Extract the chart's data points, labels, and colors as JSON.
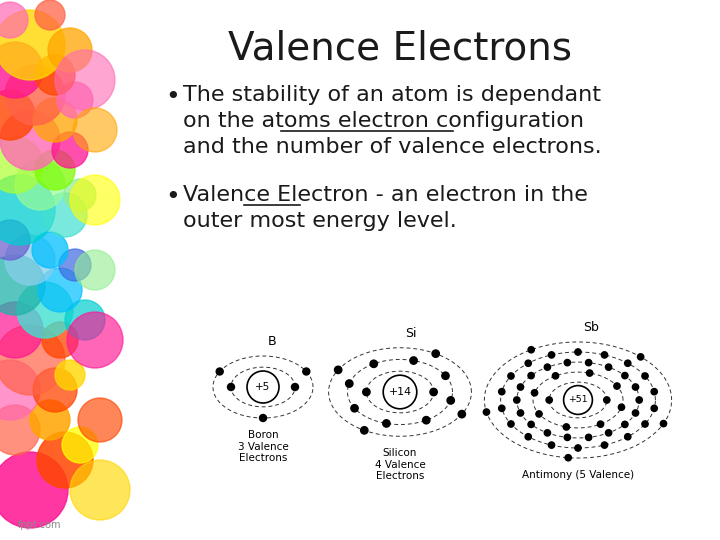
{
  "title": "Valence Electrons",
  "bg_color": "#ffffff",
  "text_color": "#1a1a1a",
  "title_fontsize": 28,
  "body_fontsize": 16,
  "caption_B": "Boron\n3 Valence\nElectrons",
  "caption_Si": "Silicon\n4 Valence\nElectrons",
  "caption_Sb": "Antimony (5 Valence)",
  "fppt_text": "fppt.com",
  "bubbles": [
    [
      30,
      50,
      38,
      "#ff1493",
      0.85
    ],
    [
      65,
      80,
      28,
      "#ff4500",
      0.85
    ],
    [
      15,
      110,
      25,
      "#ff6347",
      0.7
    ],
    [
      50,
      120,
      20,
      "#ffa500",
      0.85
    ],
    [
      80,
      95,
      18,
      "#ffff00",
      0.75
    ],
    [
      10,
      150,
      30,
      "#ff69b4",
      0.7
    ],
    [
      55,
      150,
      22,
      "#ff4500",
      0.75
    ],
    [
      30,
      180,
      35,
      "#ff6347",
      0.7
    ],
    [
      70,
      165,
      15,
      "#ffd700",
      0.8
    ],
    [
      15,
      210,
      28,
      "#ff1493",
      0.7
    ],
    [
      60,
      200,
      18,
      "#ff4500",
      0.75
    ],
    [
      45,
      230,
      28,
      "#40e0d0",
      0.8
    ],
    [
      85,
      220,
      20,
      "#00ced1",
      0.7
    ],
    [
      15,
      255,
      30,
      "#20b2aa",
      0.75
    ],
    [
      60,
      250,
      22,
      "#00bfff",
      0.7
    ],
    [
      30,
      280,
      25,
      "#87ceeb",
      0.75
    ],
    [
      75,
      275,
      16,
      "#4169e1",
      0.7
    ],
    [
      10,
      300,
      20,
      "#6a5acd",
      0.7
    ],
    [
      50,
      290,
      18,
      "#00bfff",
      0.75
    ],
    [
      20,
      330,
      35,
      "#00ced1",
      0.75
    ],
    [
      65,
      325,
      22,
      "#40e0d0",
      0.7
    ],
    [
      40,
      355,
      25,
      "#98fb98",
      0.7
    ],
    [
      80,
      345,
      16,
      "#90ee90",
      0.75
    ],
    [
      15,
      375,
      28,
      "#adff2f",
      0.7
    ],
    [
      55,
      370,
      20,
      "#7cfc00",
      0.75
    ],
    [
      30,
      400,
      30,
      "#ff69b4",
      0.8
    ],
    [
      70,
      390,
      18,
      "#ff1493",
      0.75
    ],
    [
      10,
      425,
      25,
      "#ff4500",
      0.8
    ],
    [
      55,
      420,
      22,
      "#ffa500",
      0.75
    ],
    [
      35,
      445,
      30,
      "#ff6347",
      0.8
    ],
    [
      75,
      440,
      18,
      "#ff69b4",
      0.75
    ],
    [
      15,
      470,
      28,
      "#ff1493",
      0.8
    ],
    [
      55,
      465,
      20,
      "#ff4500",
      0.75
    ],
    [
      30,
      495,
      35,
      "#ffd700",
      0.8
    ],
    [
      70,
      490,
      22,
      "#ffa500",
      0.75
    ],
    [
      10,
      520,
      18,
      "#ff69b4",
      0.7
    ],
    [
      50,
      525,
      15,
      "#ff6347",
      0.75
    ],
    [
      85,
      460,
      30,
      "#ff69b4",
      0.6
    ],
    [
      95,
      410,
      22,
      "#ffa500",
      0.6
    ],
    [
      95,
      340,
      25,
      "#ffff00",
      0.6
    ],
    [
      95,
      270,
      20,
      "#90ee90",
      0.6
    ],
    [
      95,
      200,
      28,
      "#ff1493",
      0.65
    ],
    [
      100,
      120,
      22,
      "#ff4500",
      0.65
    ],
    [
      100,
      50,
      30,
      "#ffd700",
      0.65
    ]
  ]
}
